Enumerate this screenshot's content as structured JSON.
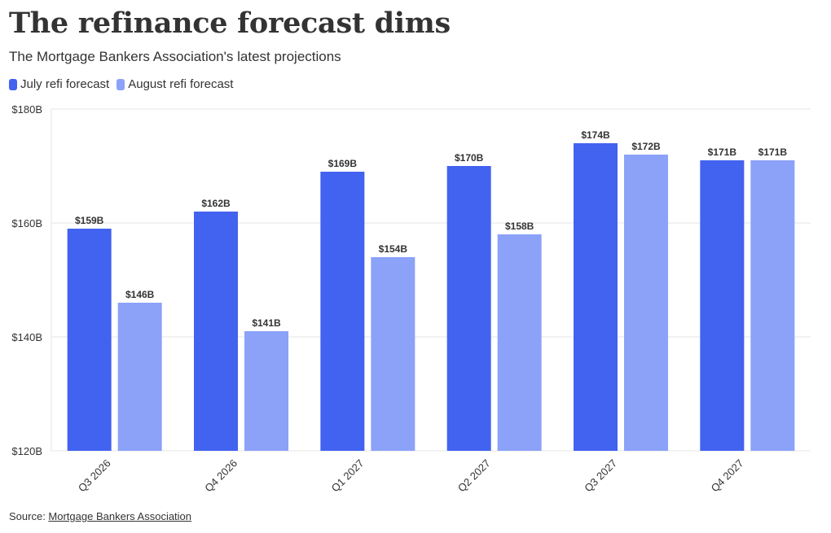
{
  "title": "The refinance forecast dims",
  "subtitle": "The Mortgage Bankers Association's latest projections",
  "source": {
    "prefix": "Source: ",
    "link_text": "Mortgage Bankers Association"
  },
  "chart_data": {
    "type": "bar",
    "categories": [
      "Q3 2026",
      "Q4 2026",
      "Q1 2027",
      "Q2 2027",
      "Q3 2027",
      "Q4 2027"
    ],
    "series": [
      {
        "name": "July refi forecast",
        "color": "#4262f0",
        "values": [
          159,
          162,
          169,
          170,
          174,
          171
        ],
        "labels": [
          "$159B",
          "$162B",
          "$169B",
          "$170B",
          "$174B",
          "$171B"
        ]
      },
      {
        "name": "August refi forecast",
        "color": "#8ba2f8",
        "values": [
          146,
          141,
          154,
          158,
          172,
          171
        ],
        "labels": [
          "$146B",
          "$141B",
          "$154B",
          "$158B",
          "$172B",
          "$171B"
        ]
      }
    ],
    "ylim": [
      120,
      180
    ],
    "yticks": [
      120,
      140,
      160,
      180
    ],
    "ytick_labels": [
      "$120B",
      "$140B",
      "$160B",
      "$180B"
    ],
    "grid": true,
    "legend_position": "top-left",
    "xlabel": "",
    "ylabel": ""
  }
}
